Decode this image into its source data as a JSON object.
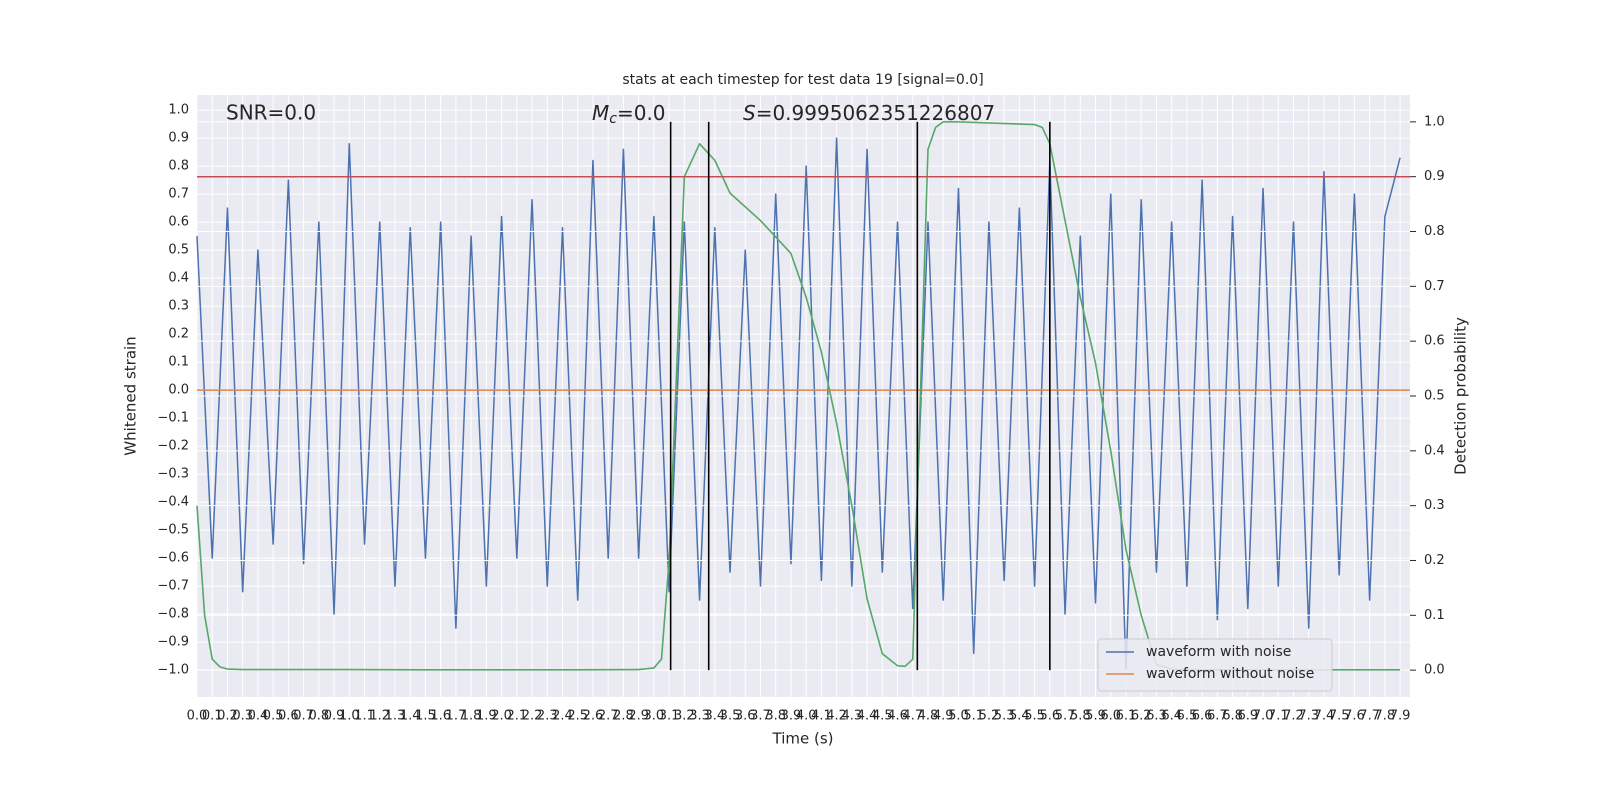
{
  "chart_data": {
    "type": "line",
    "title": "stats at each timestep for test data 19 [signal=0.0]",
    "xlabel": "Time (s)",
    "ylabel": "Whitened strain",
    "y2label": "Detection probability",
    "annotations": [
      {
        "text": "SNR=0.0"
      },
      {
        "symbol": "M",
        "subscript": "c",
        "text": "=0.0"
      },
      {
        "symbol": "S",
        "text": "=0.9995062351226807"
      }
    ],
    "xlim": [
      0,
      7.965
    ],
    "ylim": [
      -1.096,
      1.054
    ],
    "y2lim": [
      -0.049,
      1.049
    ],
    "grid": true,
    "legend": "lower right",
    "xticks": [
      {
        "value": 0,
        "label": "0.0"
      },
      0.1,
      0.2,
      0.3,
      0.4,
      0.5,
      0.6,
      0.7,
      0.8,
      0.9,
      {
        "value": 1,
        "label": "1.0"
      },
      1.1,
      1.2,
      1.3,
      1.4,
      1.5,
      1.6,
      1.7,
      1.8,
      1.9,
      {
        "value": 2,
        "label": "2.0"
      },
      2.1,
      2.2,
      2.3,
      2.4,
      2.5,
      2.6,
      2.7,
      2.8,
      2.9,
      {
        "value": 3,
        "label": "3.0"
      },
      3.1,
      3.2,
      3.3,
      3.4,
      3.5,
      3.6,
      3.7,
      3.8,
      3.9,
      {
        "value": 4,
        "label": "4.0"
      },
      4.1,
      4.2,
      4.3,
      4.4,
      4.5,
      4.6,
      4.7,
      4.8,
      4.9,
      {
        "value": 5,
        "label": "5.0"
      },
      5.1,
      5.2,
      5.3,
      5.4,
      5.5,
      5.6,
      5.7,
      5.8,
      5.9,
      {
        "value": 6,
        "label": "6.0"
      },
      6.1,
      6.2,
      6.3,
      6.4,
      6.5,
      6.6,
      6.7,
      6.8,
      6.9,
      {
        "value": 7,
        "label": "7.0"
      },
      7.1,
      7.2,
      7.3,
      7.4,
      7.5,
      7.6,
      7.7,
      7.8,
      7.9
    ],
    "yticks": [
      {
        "value": -1,
        "label": "−1.0"
      },
      {
        "value": -0.9,
        "label": "−0.9"
      },
      {
        "value": -0.8,
        "label": "−0.8"
      },
      {
        "value": -0.7,
        "label": "−0.7"
      },
      {
        "value": -0.6,
        "label": "−0.6"
      },
      {
        "value": -0.5,
        "label": "−0.5"
      },
      {
        "value": -0.4,
        "label": "−0.4"
      },
      {
        "value": -0.3,
        "label": "−0.3"
      },
      {
        "value": -0.2,
        "label": "−0.2"
      },
      {
        "value": -0.1,
        "label": "−0.1"
      },
      {
        "value": 0,
        "label": "0.0"
      },
      0.1,
      0.2,
      0.3,
      0.4,
      0.5,
      0.6,
      0.7,
      0.8,
      0.9,
      {
        "value": 1,
        "label": "1.0"
      }
    ],
    "y2ticks": [
      {
        "value": 0,
        "label": "0.0"
      },
      0.1,
      0.2,
      0.3,
      0.4,
      0.5,
      0.6,
      0.7,
      0.8,
      0.9,
      {
        "value": 1,
        "label": "1.0"
      }
    ],
    "series": [
      {
        "name": "waveform with noise",
        "color": "#4c72b0",
        "x": [
          0,
          0.1,
          0.2,
          0.3,
          0.4,
          0.5,
          0.6,
          0.7,
          0.8,
          0.9,
          1,
          1.1,
          1.2,
          1.3,
          1.4,
          1.5,
          1.6,
          1.7,
          1.8,
          1.9,
          2,
          2.1,
          2.2,
          2.3,
          2.4,
          2.5,
          2.6,
          2.7,
          2.8,
          2.9,
          3,
          3.1,
          3.2,
          3.3,
          3.4,
          3.5,
          3.6,
          3.7,
          3.8,
          3.9,
          4,
          4.1,
          4.2,
          4.3,
          4.4,
          4.5,
          4.6,
          4.7,
          4.8,
          4.9,
          5,
          5.1,
          5.2,
          5.3,
          5.4,
          5.5,
          5.6,
          5.7,
          5.8,
          5.9,
          6,
          6.1,
          6.2,
          6.3,
          6.4,
          6.5,
          6.6,
          6.7,
          6.8,
          6.9,
          7,
          7.1,
          7.2,
          7.3,
          7.4,
          7.5,
          7.6,
          7.7,
          7.8,
          7.9
        ],
        "values": [
          0.55,
          -0.6,
          0.65,
          -0.72,
          0.5,
          -0.55,
          0.75,
          -0.62,
          0.6,
          -0.8,
          0.88,
          -0.55,
          0.6,
          -0.7,
          0.58,
          -0.6,
          0.6,
          -0.85,
          0.55,
          -0.7,
          0.62,
          -0.6,
          0.68,
          -0.7,
          0.58,
          -0.75,
          0.82,
          -0.6,
          0.86,
          -0.6,
          0.62,
          -0.72,
          0.6,
          -0.75,
          0.58,
          -0.65,
          0.5,
          -0.7,
          0.7,
          -0.62,
          0.8,
          -0.68,
          0.9,
          -0.7,
          0.86,
          -0.65,
          0.6,
          -0.78,
          0.6,
          -0.75,
          0.72,
          -0.94,
          0.6,
          -0.68,
          0.65,
          -0.7,
          0.82,
          -0.8,
          0.55,
          -0.76,
          0.7,
          -1.0,
          0.68,
          -0.65,
          0.6,
          -0.7,
          0.75,
          -0.82,
          0.62,
          -0.78,
          0.72,
          -0.7,
          0.6,
          -0.85,
          0.78,
          -0.66,
          0.7,
          -0.75,
          0.62,
          0.83
        ]
      },
      {
        "name": "waveform without noise",
        "color": "#dd8452",
        "x": [
          0,
          7.965
        ],
        "values": [
          0,
          0
        ]
      },
      {
        "color": "#55a868",
        "axis": "y2",
        "x": [
          0,
          0.05,
          0.1,
          0.15,
          0.2,
          0.3,
          0.5,
          1,
          1.5,
          2,
          2.5,
          2.9,
          3.0,
          3.05,
          3.1,
          3.15,
          3.2,
          3.3,
          3.4,
          3.5,
          3.7,
          3.9,
          4.0,
          4.1,
          4.2,
          4.3,
          4.4,
          4.5,
          4.6,
          4.65,
          4.7,
          4.75,
          4.8,
          4.85,
          4.9,
          5.0,
          5.5,
          5.55,
          5.6,
          5.7,
          5.8,
          5.9,
          6.0,
          6.1,
          6.2,
          6.3,
          6.4,
          6.5,
          7.0,
          7.9
        ],
        "values": [
          0.3,
          0.1,
          0.02,
          0.006,
          0.002,
          0.001,
          0.001,
          0.001,
          0.0005,
          0.0005,
          0.0005,
          0.001,
          0.004,
          0.02,
          0.2,
          0.55,
          0.9,
          0.96,
          0.93,
          0.87,
          0.82,
          0.76,
          0.68,
          0.58,
          0.45,
          0.3,
          0.13,
          0.03,
          0.008,
          0.007,
          0.02,
          0.5,
          0.95,
          0.99,
          1.0,
          1.0,
          0.995,
          0.99,
          0.96,
          0.82,
          0.68,
          0.56,
          0.4,
          0.22,
          0.1,
          0.01,
          0.002,
          0.0005,
          0.0005,
          0.0005
        ]
      }
    ],
    "hlines": [
      {
        "value": 0.9,
        "axis": "y2",
        "color": "#c44e52"
      }
    ],
    "vlines": {
      "x": [
        3.11,
        3.36,
        4.73,
        5.6
      ],
      "span": [
        0,
        1
      ],
      "axis": "y2",
      "color": "#000000"
    }
  }
}
